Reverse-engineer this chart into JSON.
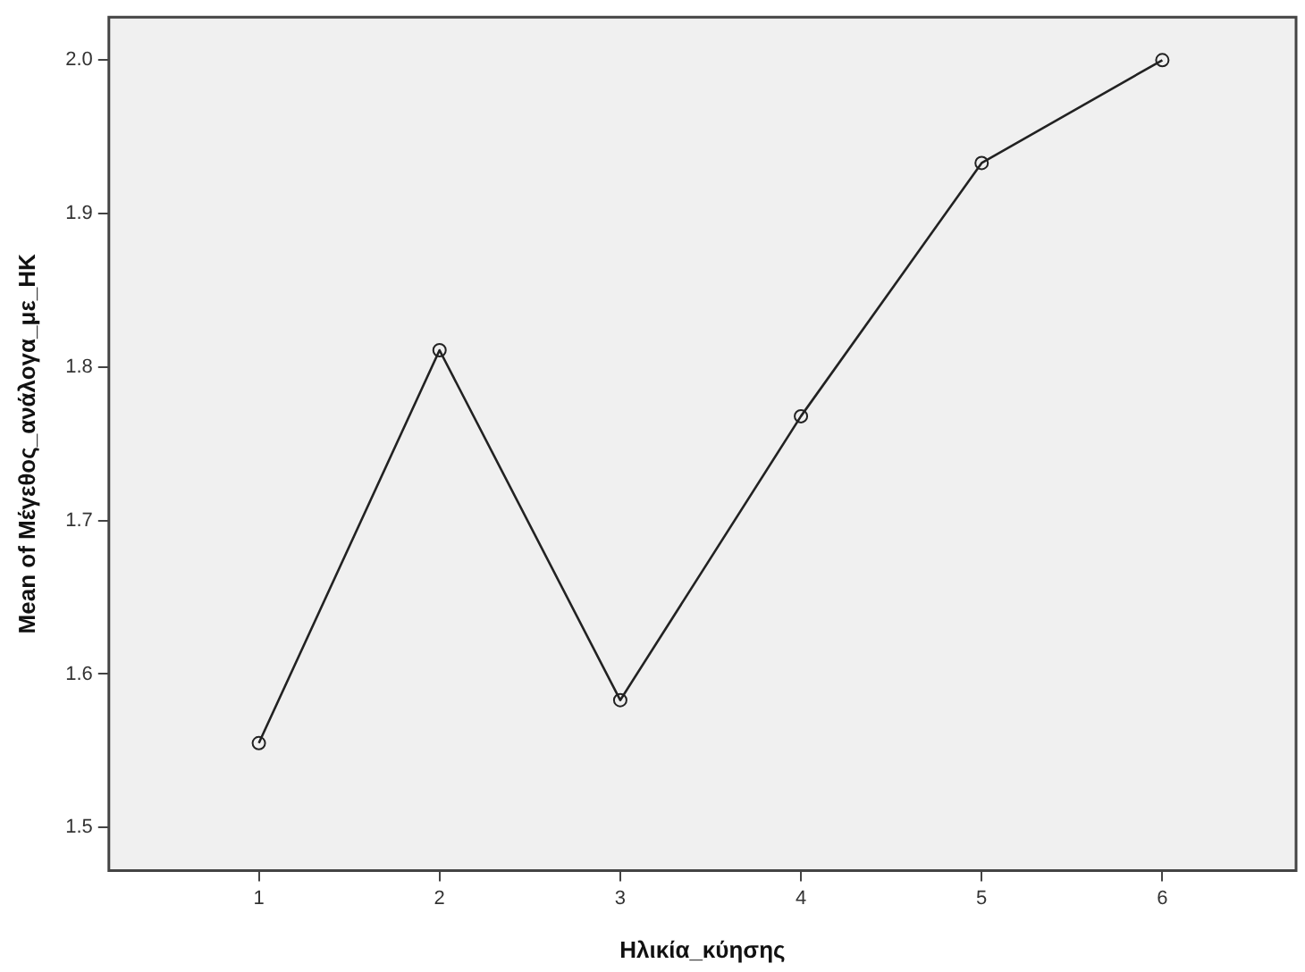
{
  "chart_data": {
    "type": "line",
    "xlabel": "Ηλικία_κύησης",
    "ylabel": "Mean of Μέγεθος_ανάλογα_με_ΗΚ",
    "x": [
      1,
      2,
      3,
      4,
      5,
      6
    ],
    "series": [
      {
        "color": "#222222",
        "values": [
          1.555,
          1.811,
          1.583,
          1.768,
          1.933,
          2.0
        ]
      }
    ],
    "xlim": [
      0.17,
      6.74
    ],
    "xticks": [
      1,
      2,
      3,
      4,
      5,
      6
    ],
    "ylim": [
      1.472,
      2.028
    ],
    "yticks": [
      {
        "value": 1.5,
        "label": "1.5"
      },
      {
        "value": 1.6,
        "label": "1.6"
      },
      {
        "value": 1.7,
        "label": "1.7"
      },
      {
        "value": 1.8,
        "label": "1.8"
      },
      {
        "value": 1.9,
        "label": "1.9"
      },
      {
        "value": 2.0,
        "label": "2.0"
      }
    ],
    "marker": "circle",
    "line_style": "solid",
    "grid": false,
    "legend": false
  }
}
